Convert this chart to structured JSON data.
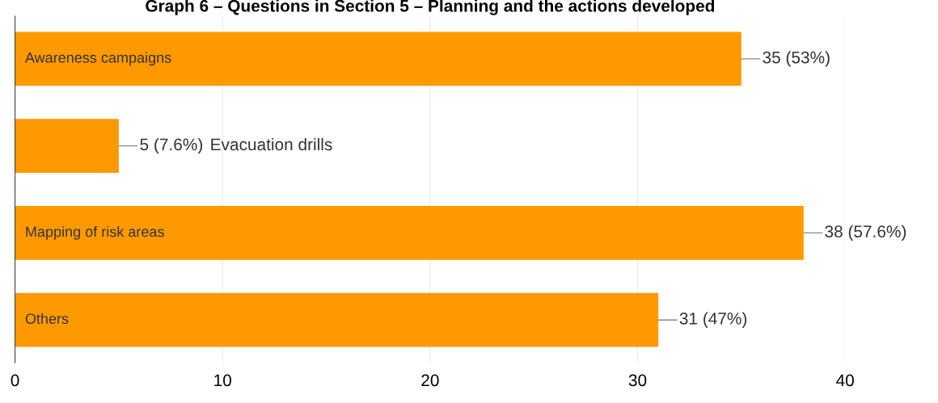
{
  "chart_data": {
    "type": "bar",
    "orientation": "horizontal",
    "title": "Graph 6 – Questions in Section 5 – Planning and the actions developed",
    "categories": [
      "Awareness campaigns",
      "Evacuation drills",
      "Mapping of risk areas",
      "Others"
    ],
    "values": [
      35,
      5,
      38,
      31
    ],
    "color": "#ff9900",
    "value_labels": [
      "35 (53%)",
      "5 (7.6%)",
      "38 (57.6%)",
      "31 (47%)"
    ],
    "xlim": [
      0,
      40
    ],
    "xticks": [
      0,
      10,
      20,
      30,
      40
    ],
    "grid": "x"
  }
}
